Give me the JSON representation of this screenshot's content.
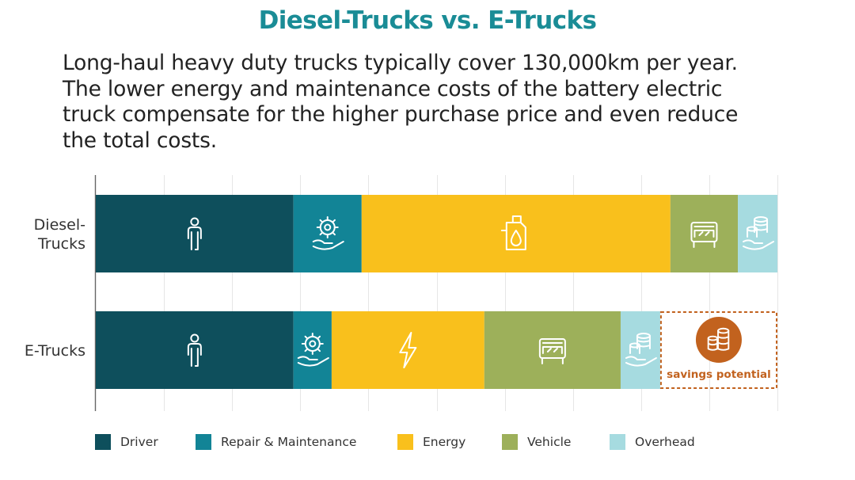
{
  "title": "Diesel-Trucks vs. E-Trucks",
  "paragraph": [
    "Long-haul heavy duty trucks typically cover 130,000km per year.",
    "The lower energy and maintenance costs of the battery electric",
    "truck compensate for the higher purchase price and even reduce",
    "the total costs."
  ],
  "colors": {
    "driver": "#0e4f5c",
    "repair": "#128496",
    "energy": "#f9c01c",
    "vehicle": "#9db05a",
    "overhead": "#a6dbe0",
    "savings": "#c2621e"
  },
  "chart_data": {
    "type": "bar",
    "orientation": "horizontal",
    "stacked": true,
    "categories": [
      [
        "Diesel-",
        "Trucks"
      ],
      [
        "E-Trucks"
      ]
    ],
    "xlim": [
      0,
      100
    ],
    "grid": true,
    "legend_position": "bottom",
    "series": [
      {
        "name": "Driver",
        "key": "driver",
        "values": [
          29,
          29
        ],
        "icon": "person-icon"
      },
      {
        "name": "Repair & Maintenance",
        "key": "repair",
        "values": [
          10,
          5.6
        ],
        "icon": "gear-hand-icon"
      },
      {
        "name": "Energy",
        "key": "energy",
        "values": [
          45.3,
          22.4
        ],
        "icon_diesel": "fuel-canister-icon",
        "icon_e": "lightning-icon"
      },
      {
        "name": "Vehicle",
        "key": "vehicle",
        "values": [
          9.9,
          20
        ],
        "icon": "truck-front-icon"
      },
      {
        "name": "Overhead",
        "key": "overhead",
        "values": [
          5.8,
          5.8
        ],
        "icon": "coins-hand-icon"
      }
    ],
    "savings": {
      "label": "savings potential",
      "value": 17.2,
      "category": "E-Trucks",
      "icon": "coins-icon"
    }
  }
}
